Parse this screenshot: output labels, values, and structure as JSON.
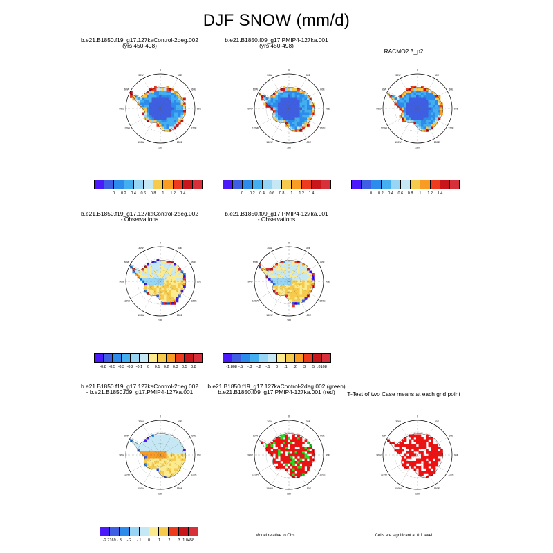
{
  "figure": {
    "title": "DJF SNOW (mm/d)"
  },
  "colors": {
    "abs": [
      "#4B1AFA",
      "#3E5FE3",
      "#2D8BEB",
      "#43AEF0",
      "#98D5F4",
      "#C6E8F5",
      "#F6CB4D",
      "#F89C23",
      "#EF3B1D",
      "#C8161B",
      "#D8303A"
    ],
    "diff": [
      "#4B1AFA",
      "#3E5FE3",
      "#2D8BEB",
      "#43AEF0",
      "#98D5F4",
      "#C6E8F5",
      "#FBEA8E",
      "#F6CB4D",
      "#F89C23",
      "#EF3B1D",
      "#C8161B",
      "#D8303A"
    ]
  },
  "legend_sig": {
    "significant": "#EE1111",
    "model_green": "#22DD22"
  },
  "panels": [
    {
      "title1": "b.e21.B1850.f19_g17.127kaControl-2deg.002",
      "title2": "(yrs 450-498)",
      "colorbar": {
        "labels": [
          "0",
          "0.2",
          "0.4",
          "0.6",
          "0.8",
          "1",
          "1.2",
          "1.4"
        ],
        "cells": 11
      }
    },
    {
      "title1": "b.e21.B1850.f09_g17.PMIP4-127ka.001",
      "title2": "(yrs 450-498)",
      "colorbar": {
        "labels": [
          "0",
          "0.2",
          "0.4",
          "0.6",
          "0.8",
          "1",
          "1.2",
          "1.4"
        ],
        "cells": 11
      }
    },
    {
      "title1": "RACMO2.3_p2",
      "title2": "",
      "colorbar": {
        "labels": [
          "0",
          "0.2",
          "0.4",
          "0.6",
          "0.8",
          "1",
          "1.2",
          "1.4"
        ],
        "cells": 11
      }
    },
    {
      "title1": "b.e21.B1850.f19_g17.127kaControl-2deg.002",
      "title2": "- Observations",
      "colorbar": {
        "labels": [
          "-0.8",
          "-0.5",
          "-0.3",
          "-0.2",
          "-0.1",
          "0",
          "0.1",
          "0.2",
          "0.3",
          "0.5",
          "0.8"
        ],
        "cells": 12
      }
    },
    {
      "title1": "b.e21.B1850.f09_g17.PMIP4-127ka.001",
      "title2": "- Observations",
      "colorbar": {
        "labels": [
          "-1.808",
          "-.5",
          "-.3",
          "-.2",
          "-.1",
          "0",
          ".1",
          ".2",
          ".3",
          ".5",
          ".8108"
        ],
        "cells": 12
      }
    },
    {
      "title1": "b.e21.B1850.f19_g17.127kaControl-2deg.002",
      "title2": "- b.e21.B1850.f09_g17.PMIP4-127ka.001",
      "colorbar": {
        "labels": [
          "-2.7169",
          "-.3",
          "-.2",
          "-.1",
          "0",
          ".1",
          ".2",
          ".3",
          "1.0458"
        ],
        "cells": 10
      }
    },
    {
      "title1": "b.e21.B1850.f19_g17.127kaControl-2deg.002 (green)",
      "title2": "b.e21.B1850.f09_g17.PMIP4-127ka.001 (red)",
      "note": "Model relative to Obs"
    },
    {
      "title1": "T-Test of two Case means at each grid point",
      "title2": "",
      "note": "Cells are significant at 0.1 level"
    }
  ],
  "lon_labels": [
    "0",
    "30E",
    "60E",
    "90E",
    "120E",
    "150E",
    "180",
    "150W",
    "120W",
    "90W",
    "60W",
    "30W"
  ]
}
